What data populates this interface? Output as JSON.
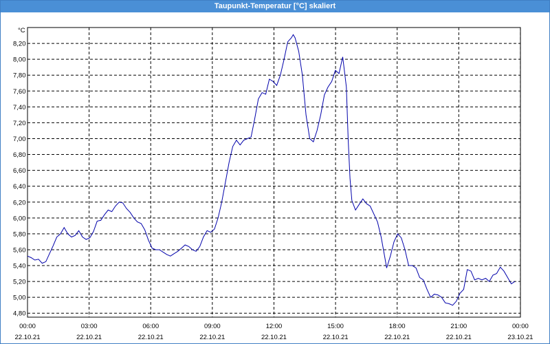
{
  "window": {
    "title": "Taupunkt-Temperatur [°C] skaliert"
  },
  "chart_data": {
    "type": "line",
    "title": "Taupunkt-Temperatur [°C] skaliert",
    "y_unit_label": "°C",
    "ylim": [
      4.75,
      8.4
    ],
    "y_ticks": [
      "4,80",
      "5,00",
      "5,20",
      "5,40",
      "5,60",
      "5,80",
      "6,00",
      "6,20",
      "6,40",
      "6,60",
      "6,80",
      "7,00",
      "7,20",
      "7,40",
      "7,60",
      "7,80",
      "8,00",
      "8,20"
    ],
    "y_tick_values": [
      4.8,
      5.0,
      5.2,
      5.4,
      5.6,
      5.8,
      6.0,
      6.2,
      6.4,
      6.6,
      6.8,
      7.0,
      7.2,
      7.4,
      7.6,
      7.8,
      8.0,
      8.2
    ],
    "x_ticks": [
      {
        "time": "00:00",
        "date": "22.10.21",
        "hour": 0
      },
      {
        "time": "03:00",
        "date": "22.10.21",
        "hour": 3
      },
      {
        "time": "06:00",
        "date": "22.10.21",
        "hour": 6
      },
      {
        "time": "09:00",
        "date": "22.10.21",
        "hour": 9
      },
      {
        "time": "12:00",
        "date": "22.10.21",
        "hour": 12
      },
      {
        "time": "15:00",
        "date": "22.10.21",
        "hour": 15
      },
      {
        "time": "18:00",
        "date": "22.10.21",
        "hour": 18
      },
      {
        "time": "21:00",
        "date": "22.10.21",
        "hour": 21
      },
      {
        "time": "00:00",
        "date": "23.10.21",
        "hour": 24
      }
    ],
    "xlim_hours": [
      0,
      24
    ],
    "grid": true,
    "line_color": "#0000aa",
    "series": [
      {
        "points": [
          [
            0.0,
            5.52
          ],
          [
            0.2,
            5.5
          ],
          [
            0.4,
            5.47
          ],
          [
            0.6,
            5.48
          ],
          [
            0.8,
            5.43
          ],
          [
            1.0,
            5.45
          ],
          [
            1.2,
            5.55
          ],
          [
            1.4,
            5.65
          ],
          [
            1.6,
            5.76
          ],
          [
            1.8,
            5.8
          ],
          [
            2.0,
            5.88
          ],
          [
            2.2,
            5.8
          ],
          [
            2.4,
            5.76
          ],
          [
            2.6,
            5.78
          ],
          [
            2.8,
            5.84
          ],
          [
            3.0,
            5.76
          ],
          [
            3.2,
            5.73
          ],
          [
            3.4,
            5.75
          ],
          [
            3.6,
            5.83
          ],
          [
            3.8,
            5.96
          ],
          [
            4.0,
            5.97
          ],
          [
            4.2,
            6.04
          ],
          [
            4.4,
            6.1
          ],
          [
            4.6,
            6.08
          ],
          [
            4.8,
            6.15
          ],
          [
            5.0,
            6.2
          ],
          [
            5.2,
            6.19
          ],
          [
            5.4,
            6.12
          ],
          [
            5.6,
            6.07
          ],
          [
            5.8,
            6.0
          ],
          [
            6.0,
            5.95
          ],
          [
            6.2,
            5.93
          ],
          [
            6.4,
            5.85
          ],
          [
            6.6,
            5.72
          ],
          [
            6.8,
            5.62
          ],
          [
            7.0,
            5.6
          ],
          [
            7.2,
            5.6
          ],
          [
            7.4,
            5.57
          ],
          [
            7.6,
            5.54
          ],
          [
            7.8,
            5.52
          ],
          [
            8.0,
            5.55
          ],
          [
            8.2,
            5.58
          ],
          [
            8.4,
            5.62
          ],
          [
            8.6,
            5.66
          ],
          [
            8.8,
            5.64
          ],
          [
            9.0,
            5.6
          ],
          [
            9.2,
            5.58
          ],
          [
            9.4,
            5.64
          ],
          [
            9.6,
            5.76
          ],
          [
            9.8,
            5.84
          ],
          [
            10.0,
            5.82
          ],
          [
            10.2,
            5.86
          ],
          [
            10.4,
            6.0
          ],
          [
            10.6,
            6.2
          ],
          [
            10.8,
            6.45
          ],
          [
            11.0,
            6.7
          ],
          [
            11.2,
            6.9
          ],
          [
            11.4,
            6.98
          ],
          [
            11.6,
            6.92
          ],
          [
            11.8,
            6.98
          ],
          [
            12.0,
            7.0
          ],
          [
            12.2,
            7.02
          ],
          [
            12.4,
            7.25
          ],
          [
            12.6,
            7.5
          ],
          [
            12.8,
            7.58
          ],
          [
            13.0,
            7.56
          ],
          [
            13.2,
            7.75
          ],
          [
            13.4,
            7.72
          ],
          [
            13.6,
            7.67
          ],
          [
            13.8,
            7.8
          ],
          [
            14.0,
            8.0
          ],
          [
            14.2,
            8.22
          ],
          [
            14.4,
            8.27
          ],
          [
            14.5,
            8.31
          ],
          [
            14.6,
            8.27
          ],
          [
            14.8,
            8.1
          ],
          [
            15.0,
            7.8
          ],
          [
            15.2,
            7.3
          ],
          [
            15.4,
            7.0
          ],
          [
            15.6,
            6.96
          ],
          [
            15.8,
            7.1
          ],
          [
            16.0,
            7.3
          ],
          [
            16.2,
            7.55
          ],
          [
            16.4,
            7.65
          ],
          [
            16.6,
            7.72
          ],
          [
            16.8,
            7.86
          ],
          [
            17.0,
            7.82
          ],
          [
            17.2,
            8.03
          ],
          [
            17.4,
            7.65
          ],
          [
            17.5,
            7.0
          ],
          [
            17.6,
            6.5
          ],
          [
            17.7,
            6.22
          ],
          [
            17.9,
            6.1
          ],
          [
            18.1,
            6.17
          ],
          [
            18.3,
            6.24
          ],
          [
            18.5,
            6.18
          ],
          [
            18.7,
            6.15
          ],
          [
            18.9,
            6.05
          ],
          [
            19.1,
            5.95
          ],
          [
            19.3,
            5.76
          ],
          [
            19.5,
            5.5
          ],
          [
            19.6,
            5.37
          ],
          [
            19.8,
            5.52
          ],
          [
            20.0,
            5.7
          ],
          [
            20.2,
            5.8
          ],
          [
            20.4,
            5.75
          ],
          [
            20.6,
            5.6
          ],
          [
            20.8,
            5.4
          ],
          [
            21.0,
            5.4
          ],
          [
            21.2,
            5.37
          ],
          [
            21.4,
            5.25
          ],
          [
            21.6,
            5.22
          ],
          [
            21.8,
            5.1
          ],
          [
            22.0,
            5.0
          ],
          [
            22.2,
            5.04
          ],
          [
            22.4,
            5.03
          ],
          [
            22.6,
            5.0
          ],
          [
            22.8,
            4.93
          ],
          [
            23.0,
            4.92
          ],
          [
            23.2,
            4.9
          ],
          [
            23.4,
            4.95
          ],
          [
            23.6,
            5.05
          ],
          [
            23.8,
            5.1
          ],
          [
            24.0,
            5.35
          ],
          [
            24.2,
            5.33
          ],
          [
            24.4,
            5.22
          ],
          [
            24.6,
            5.24
          ],
          [
            24.8,
            5.22
          ],
          [
            25.0,
            5.24
          ],
          [
            25.2,
            5.2
          ],
          [
            25.4,
            5.28
          ],
          [
            25.6,
            5.3
          ],
          [
            25.8,
            5.38
          ],
          [
            26.0,
            5.33
          ],
          [
            26.2,
            5.25
          ],
          [
            26.4,
            5.17
          ],
          [
            26.6,
            5.2
          ]
        ]
      }
    ]
  }
}
